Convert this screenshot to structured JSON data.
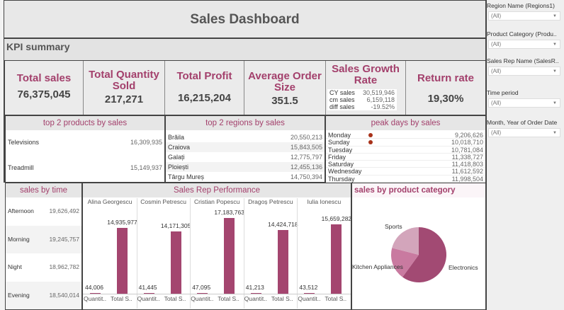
{
  "header": {
    "title": "Sales Dashboard",
    "kpi_section": "KPI summary"
  },
  "kpis": [
    {
      "label": "Total sales",
      "value": "76,375,045"
    },
    {
      "label": "Total Quantity Sold",
      "value": "217,271"
    },
    {
      "label": "Total Profit",
      "value": "16,215,204"
    },
    {
      "label": "Average Order Size",
      "value": "351.5"
    },
    {
      "label": "Sales Growth Rate",
      "rows": [
        {
          "k": "CY sales",
          "v": "30,519,946"
        },
        {
          "k": "cm sales",
          "v": "6,159,118"
        },
        {
          "k": "diff sales",
          "v": "-19.52%"
        }
      ]
    },
    {
      "label": "Return rate",
      "value": "19,30%"
    }
  ],
  "top_products": {
    "title": "top 2 products by sales",
    "rows": [
      {
        "name": "Televisions",
        "value": "16,309,935"
      },
      {
        "name": "Treadmill",
        "value": "15,149,937"
      }
    ]
  },
  "top_regions": {
    "title": "top 2 regions by sales",
    "rows": [
      {
        "name": "Brăila",
        "value": "20,550,213"
      },
      {
        "name": "Craiova",
        "value": "15,843,505"
      },
      {
        "name": "Galați",
        "value": "12,775,797"
      },
      {
        "name": "Ploiești",
        "value": "12,455,136"
      },
      {
        "name": "Târgu Mureș",
        "value": "14,750,394"
      }
    ]
  },
  "peak_days": {
    "title": "peak days by sales",
    "rows": [
      {
        "name": "Monday",
        "value": "9,206,626",
        "dot": true
      },
      {
        "name": "Sunday",
        "value": "10,018,710",
        "dot": true
      },
      {
        "name": "Tuesday",
        "value": "10,781,084"
      },
      {
        "name": "Friday",
        "value": "11,338,727"
      },
      {
        "name": "Saturday",
        "value": "11,418,803"
      },
      {
        "name": "Wednesday",
        "value": "11,612,592"
      },
      {
        "name": "Thursday",
        "value": "11,998,504"
      }
    ]
  },
  "sales_by_time": {
    "title": "sales by time",
    "rows": [
      {
        "name": "Afternoon",
        "value": "19,626,492"
      },
      {
        "name": "Morning",
        "value": "19,245,757"
      },
      {
        "name": "Night",
        "value": "18,962,782"
      },
      {
        "name": "Evening",
        "value": "18,540,014"
      }
    ]
  },
  "chart_data": [
    {
      "type": "bar",
      "title": "Sales Rep Performance",
      "categories": [
        "Alina Georgescu",
        "Cosmin Petrescu",
        "Cristian Popescu",
        "Dragoș Petrescu",
        "Iulia Ionescu"
      ],
      "measure_labels": [
        "Quantit..",
        "Total S.."
      ],
      "series": [
        {
          "name": "Quantity",
          "values": [
            44006,
            41445,
            47095,
            41213,
            43512
          ],
          "labels": [
            "44,006",
            "41,445",
            "47,095",
            "41,213",
            "43,512"
          ]
        },
        {
          "name": "Total Sales",
          "values": [
            14935977,
            14171305,
            17183763,
            14424718,
            15659282
          ],
          "labels": [
            "14,935,977",
            "14,171,305",
            "17,183,763",
            "14,424,718",
            "15,659,282"
          ]
        }
      ],
      "color": "#a4456f"
    },
    {
      "type": "pie",
      "title": "sales by product category",
      "categories": [
        "Electronics",
        "Kitchen Appliances",
        "Sports"
      ],
      "values": [
        60,
        19,
        21
      ],
      "colors": [
        "#a24a73",
        "#c97aa0",
        "#d3a5bb"
      ]
    }
  ],
  "filters": [
    {
      "label": "Region Name (Regions1)",
      "value": "(All)"
    },
    {
      "label": "Product Category (Produ..",
      "value": "(All)"
    },
    {
      "label": "Sales Rep Name (SalesR..",
      "value": "(All)"
    },
    {
      "label": "Time period",
      "value": "(All)"
    },
    {
      "label": "Month, Year of Order Date",
      "value": "(All)"
    }
  ]
}
